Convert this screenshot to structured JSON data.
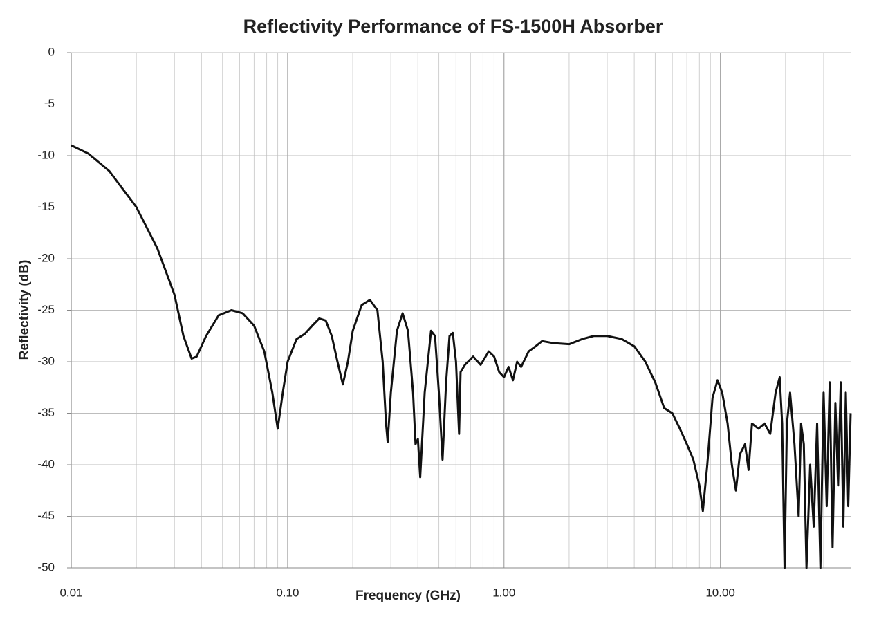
{
  "chart_data": {
    "type": "line",
    "title": "Reflectivity Performance of FS-1500H Absorber",
    "x_label": "Frequency (GHz)",
    "y_label": "Reflectivity (dB)",
    "x_scale": "log",
    "grid": true,
    "xlim": [
      0.01,
      40
    ],
    "ylim": [
      -50,
      0
    ],
    "xticks": [
      0.01,
      {
        "value": 0.1,
        "label": "0.10"
      },
      {
        "value": 1,
        "label": "1.00"
      },
      {
        "value": 10,
        "label": "10.00"
      }
    ],
    "yticks": [
      0,
      -5,
      -10,
      -15,
      -20,
      -25,
      -30,
      -35,
      -40,
      -45,
      -50
    ],
    "x": [
      0.01,
      0.012,
      0.015,
      0.02,
      0.025,
      0.03,
      0.033,
      0.036,
      0.038,
      0.042,
      0.048,
      0.055,
      0.062,
      0.07,
      0.078,
      0.085,
      0.09,
      0.095,
      0.1,
      0.11,
      0.12,
      0.13,
      0.14,
      0.15,
      0.16,
      0.17,
      0.18,
      0.19,
      0.2,
      0.22,
      0.24,
      0.26,
      0.275,
      0.285,
      0.29,
      0.3,
      0.32,
      0.34,
      0.36,
      0.38,
      0.39,
      0.4,
      0.41,
      0.43,
      0.46,
      0.48,
      0.5,
      0.52,
      0.54,
      0.56,
      0.58,
      0.6,
      0.62,
      0.63,
      0.66,
      0.72,
      0.78,
      0.85,
      0.9,
      0.95,
      1.0,
      1.05,
      1.1,
      1.15,
      1.2,
      1.3,
      1.4,
      1.5,
      1.7,
      2.0,
      2.3,
      2.6,
      3.0,
      3.5,
      4.0,
      4.5,
      5.0,
      5.5,
      6.0,
      6.5,
      7.0,
      7.5,
      8.0,
      8.3,
      8.7,
      9.2,
      9.7,
      10.2,
      10.8,
      11.3,
      11.8,
      12.3,
      13,
      13.5,
      14,
      15,
      16,
      17,
      18,
      18.8,
      19.3,
      19.8,
      20.3,
      21,
      22,
      23,
      23.6,
      24.3,
      25,
      26,
      27,
      28,
      29,
      30,
      31,
      32,
      33,
      34,
      35,
      36,
      37,
      38,
      39,
      40
    ],
    "series": [
      {
        "name": "Reflectivity",
        "color": "#111111",
        "values": [
          -9,
          -9.8,
          -11.5,
          -15,
          -19,
          -23.5,
          -27.5,
          -29.7,
          -29.5,
          -27.5,
          -25.5,
          -25,
          -25.3,
          -26.5,
          -29,
          -33,
          -36.5,
          -33,
          -30,
          -27.8,
          -27.3,
          -26.5,
          -25.8,
          -26,
          -27.5,
          -30,
          -32.2,
          -30,
          -27,
          -24.5,
          -24,
          -25,
          -30,
          -36,
          -37.8,
          -33,
          -27,
          -25.3,
          -27,
          -33,
          -38,
          -37.5,
          -41.2,
          -33,
          -27,
          -27.5,
          -33,
          -39.5,
          -32,
          -27.5,
          -27.2,
          -30,
          -37,
          -31,
          -30.3,
          -29.5,
          -30.3,
          -29,
          -29.5,
          -31,
          -31.5,
          -30.5,
          -31.8,
          -30,
          -30.5,
          -29,
          -28.5,
          -28,
          -28.2,
          -28.3,
          -27.8,
          -27.5,
          -27.5,
          -27.8,
          -28.5,
          -30,
          -32,
          -34.5,
          -35,
          -36.5,
          -38,
          -39.5,
          -42,
          -44.5,
          -40,
          -33.5,
          -31.8,
          -33,
          -36,
          -40,
          -42.5,
          -39,
          -38,
          -40.5,
          -36,
          -36.5,
          -36,
          -37,
          -33,
          -31.5,
          -36,
          -50,
          -36,
          -33,
          -38,
          -45,
          -36,
          -38,
          -50,
          -40,
          -46,
          -36,
          -50,
          -33,
          -44,
          -32,
          -48,
          -34,
          -42,
          -32,
          -46,
          -33,
          -44,
          -35
        ]
      }
    ]
  }
}
